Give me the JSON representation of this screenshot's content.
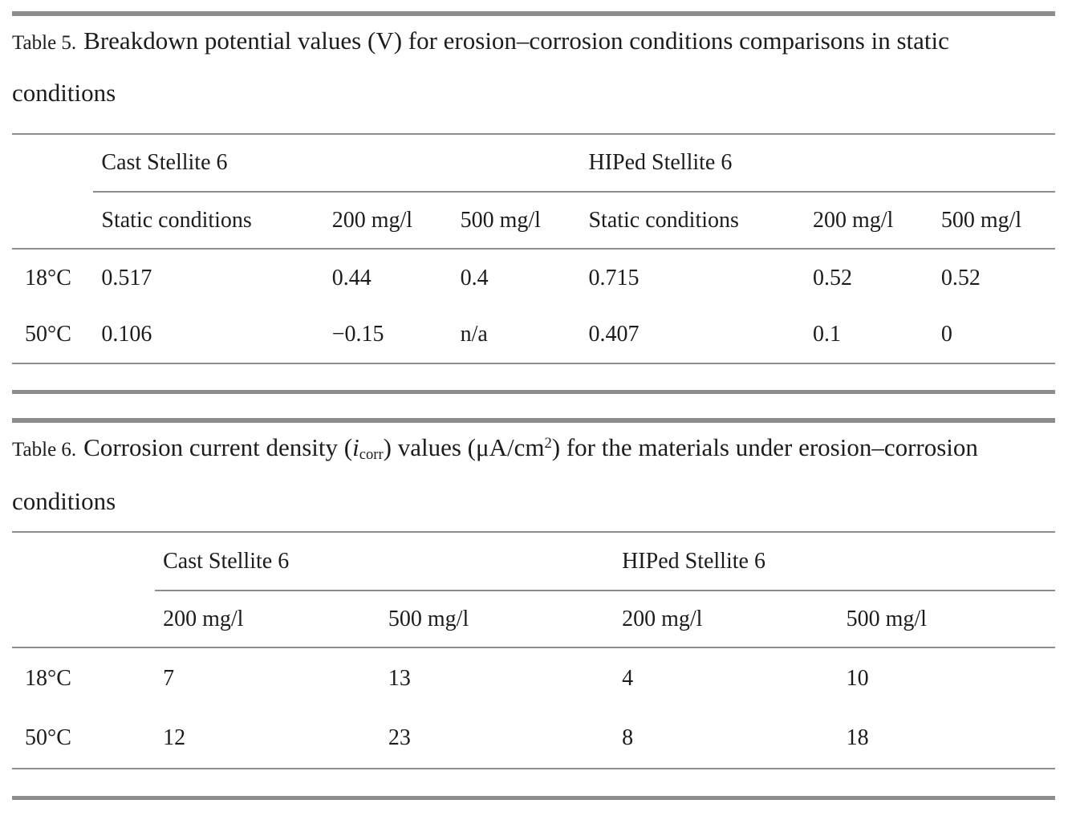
{
  "colors": {
    "background": "#ffffff",
    "text": "#1c1c1c",
    "rule": "#8d8d8d"
  },
  "table5": {
    "label": "Table 5.",
    "caption_segments": [
      {
        "t": "text",
        "v": "Breakdown potential values (V) for erosion–corrosion conditions comparisons in static conditions"
      }
    ],
    "group_headers": [
      "Cast Stellite 6",
      "HIPed Stellite 6"
    ],
    "sub_headers": [
      "Static conditions",
      "200 mg/l",
      "500 mg/l",
      "Static conditions",
      "200 mg/l",
      "500 mg/l"
    ],
    "rows": [
      {
        "label": "18°C",
        "values": [
          "0.517",
          "0.44",
          "0.4",
          "0.715",
          "0.52",
          "0.52"
        ]
      },
      {
        "label": "50°C",
        "values": [
          "0.106",
          "−0.15",
          "n/a",
          "0.407",
          "0.1",
          "0"
        ]
      }
    ]
  },
  "table6": {
    "label": "Table 6.",
    "caption_segments": [
      {
        "t": "text",
        "v": "Corrosion current density ("
      },
      {
        "t": "i",
        "v": "i"
      },
      {
        "t": "sub",
        "v": "corr"
      },
      {
        "t": "text",
        "v": ") values (μA/cm"
      },
      {
        "t": "sup",
        "v": "2"
      },
      {
        "t": "text",
        "v": ") for the materials under erosion–corrosion conditions"
      }
    ],
    "group_headers": [
      "Cast Stellite 6",
      "HIPed Stellite 6"
    ],
    "sub_headers": [
      "200 mg/l",
      "500 mg/l",
      "200 mg/l",
      "500 mg/l"
    ],
    "rows": [
      {
        "label": "18°C",
        "values": [
          "7",
          "13",
          "4",
          "10"
        ]
      },
      {
        "label": "50°C",
        "values": [
          "12",
          "23",
          "8",
          "18"
        ]
      }
    ]
  }
}
